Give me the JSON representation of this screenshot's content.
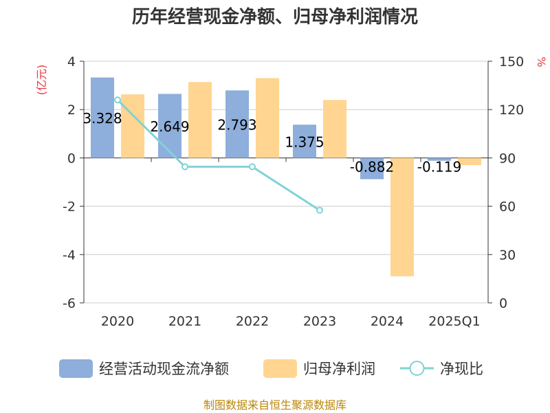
{
  "chart_data": {
    "type": "bar",
    "title": "历年经营现金净额、归母净利润情况",
    "categories": [
      "2020",
      "2021",
      "2022",
      "2023",
      "2024",
      "2025Q1"
    ],
    "series": [
      {
        "name": "经营活动现金流净额",
        "type": "bar",
        "axis": "left",
        "color": "#8eaedb",
        "values": [
          3.328,
          2.649,
          2.793,
          1.375,
          -0.882,
          -0.119
        ]
      },
      {
        "name": "归母净利润",
        "type": "bar",
        "axis": "left",
        "color": "#ffd591",
        "values": [
          2.63,
          3.14,
          3.3,
          2.4,
          -4.9,
          -0.3
        ]
      },
      {
        "name": "净现比",
        "type": "line",
        "axis": "right",
        "color": "#7fd3d6",
        "values": [
          126,
          84.5,
          84.5,
          57.5,
          null,
          null
        ]
      }
    ],
    "data_labels": [
      "3.328",
      "2.649",
      "2.793",
      "1.375",
      "-0.882",
      "-0.119"
    ],
    "y_left": {
      "label": "(亿元)",
      "min": -6,
      "max": 4,
      "ticks": [
        4,
        2,
        0,
        -2,
        -4,
        -6
      ]
    },
    "y_right": {
      "label": "%",
      "min": 0,
      "max": 150,
      "ticks": [
        150,
        120,
        90,
        60,
        30,
        0
      ]
    },
    "grid": true,
    "legend_position": "bottom"
  },
  "source": "制图数据来自恒生聚源数据库"
}
